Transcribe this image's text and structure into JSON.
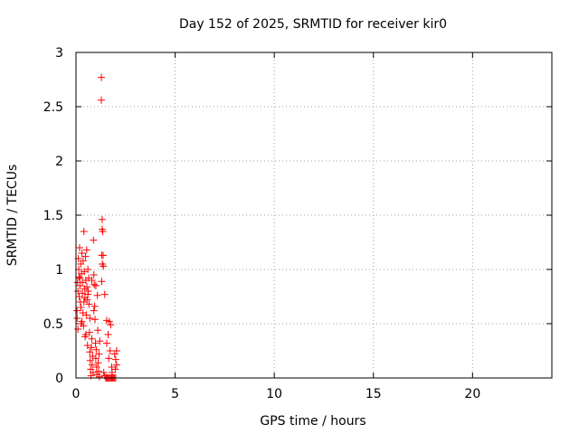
{
  "chart_data": {
    "type": "scatter",
    "title": "Day 152 of 2025, SRMTID for receiver kir0",
    "xlabel": "GPS time / hours",
    "ylabel": "SRMTID / TECUs",
    "xlim": [
      0,
      24
    ],
    "ylim": [
      0,
      3
    ],
    "x_ticks": [
      0,
      5,
      10,
      15,
      20
    ],
    "x_tick_labels": [
      "0",
      "5",
      "10",
      "15",
      "20"
    ],
    "y_ticks": [
      0,
      0.5,
      1,
      1.5,
      2,
      2.5,
      3
    ],
    "y_tick_labels": [
      "0",
      "0.5",
      "1",
      "1.5",
      "2",
      "2.5",
      "3"
    ],
    "grid": true,
    "marker": "+",
    "series": [
      {
        "name": "kir0",
        "color": "#ff0000",
        "points": [
          [
            1.28,
            2.77
          ],
          [
            1.28,
            2.56
          ],
          [
            1.32,
            1.46
          ],
          [
            1.32,
            1.37
          ],
          [
            1.35,
            1.35
          ],
          [
            1.3,
            1.13
          ],
          [
            1.37,
            1.13
          ],
          [
            1.33,
            1.05
          ],
          [
            1.38,
            1.03
          ],
          [
            1.3,
            0.89
          ],
          [
            1.45,
            0.77
          ],
          [
            1.55,
            0.53
          ],
          [
            1.68,
            0.52
          ],
          [
            1.75,
            0.49
          ],
          [
            1.62,
            0.4
          ],
          [
            1.55,
            0.32
          ],
          [
            1.72,
            0.25
          ],
          [
            1.65,
            0.18
          ],
          [
            1.8,
            0.1
          ],
          [
            1.82,
            0.05
          ],
          [
            1.95,
            0.22
          ],
          [
            2.05,
            0.25
          ],
          [
            2.0,
            0.17
          ],
          [
            2.05,
            0.12
          ],
          [
            1.98,
            0.08
          ],
          [
            1.5,
            0.0
          ],
          [
            1.55,
            0.0
          ],
          [
            1.6,
            0.0
          ],
          [
            1.65,
            0.0
          ],
          [
            1.7,
            0.0
          ],
          [
            1.75,
            0.0
          ],
          [
            1.8,
            0.0
          ],
          [
            1.85,
            0.0
          ],
          [
            1.9,
            0.0
          ],
          [
            1.95,
            0.0
          ],
          [
            2.0,
            0.0
          ],
          [
            1.45,
            0.02
          ],
          [
            1.4,
            0.05
          ],
          [
            0.05,
            0.62
          ],
          [
            0.06,
            0.55
          ],
          [
            0.08,
            0.88
          ],
          [
            0.1,
            0.8
          ],
          [
            0.12,
            1.1
          ],
          [
            0.14,
            1.0
          ],
          [
            0.15,
            0.93
          ],
          [
            0.16,
            0.75
          ],
          [
            0.18,
            1.2
          ],
          [
            0.2,
            0.85
          ],
          [
            0.22,
            0.7
          ],
          [
            0.24,
            1.05
          ],
          [
            0.25,
            0.65
          ],
          [
            0.26,
            0.5
          ],
          [
            0.28,
            0.96
          ],
          [
            0.3,
            1.15
          ],
          [
            0.32,
            0.88
          ],
          [
            0.33,
            0.78
          ],
          [
            0.35,
            0.6
          ],
          [
            0.36,
            1.08
          ],
          [
            0.38,
            0.48
          ],
          [
            0.4,
            1.35
          ],
          [
            0.42,
            0.98
          ],
          [
            0.44,
            0.82
          ],
          [
            0.45,
            0.74
          ],
          [
            0.46,
            0.38
          ],
          [
            0.48,
            1.12
          ],
          [
            0.5,
            0.9
          ],
          [
            0.52,
            0.58
          ],
          [
            0.54,
            1.18
          ],
          [
            0.55,
            0.84
          ],
          [
            0.56,
            0.72
          ],
          [
            0.58,
            0.3
          ],
          [
            0.6,
            1.0
          ],
          [
            0.62,
            0.8
          ],
          [
            0.64,
            0.92
          ],
          [
            0.66,
            0.68
          ],
          [
            0.68,
            0.42
          ],
          [
            0.7,
            0.24
          ],
          [
            0.72,
            0.16
          ],
          [
            0.74,
            0.08
          ],
          [
            0.76,
            0.02
          ],
          [
            0.78,
            0.28
          ],
          [
            0.8,
            0.36
          ],
          [
            0.82,
            0.12
          ],
          [
            0.84,
            0.2
          ],
          [
            0.86,
            0.05
          ],
          [
            0.88,
            1.27
          ],
          [
            0.9,
            0.95
          ],
          [
            0.92,
            0.86
          ],
          [
            0.94,
            0.66
          ],
          [
            0.96,
            0.54
          ],
          [
            0.98,
            0.32
          ],
          [
            1.0,
            0.18
          ],
          [
            1.02,
            0.26
          ],
          [
            1.04,
            0.1
          ],
          [
            1.06,
            0.03
          ],
          [
            1.08,
            0.76
          ],
          [
            1.1,
            0.44
          ],
          [
            1.12,
            0.14
          ],
          [
            1.14,
            0.06
          ],
          [
            1.16,
            0.22
          ],
          [
            1.18,
            0.01
          ],
          [
            1.2,
            0.34
          ],
          [
            0.1,
            0.45
          ],
          [
            0.3,
            0.52
          ],
          [
            0.5,
            0.4
          ],
          [
            0.7,
            0.55
          ],
          [
            0.9,
            0.62
          ],
          [
            0.2,
            0.92
          ],
          [
            0.4,
            0.7
          ],
          [
            0.6,
            0.77
          ],
          [
            0.8,
            0.9
          ],
          [
            1.0,
            0.85
          ]
        ]
      }
    ]
  }
}
